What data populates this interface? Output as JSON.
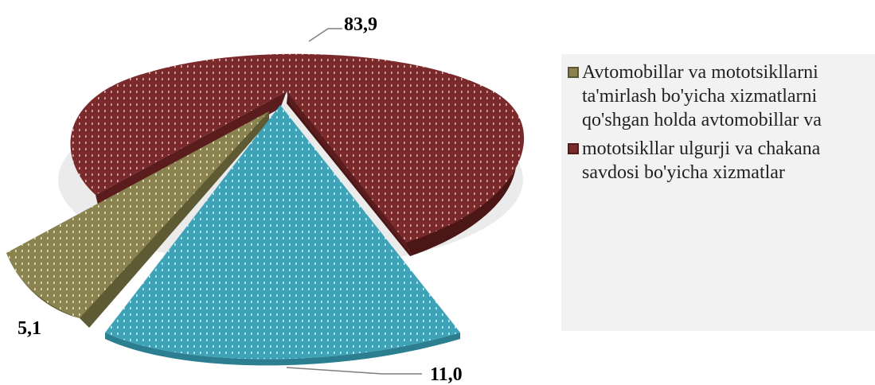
{
  "chart_data": {
    "type": "pie",
    "style": "3d-exploded",
    "slices": [
      {
        "label": "83,9",
        "value": 83.9,
        "color": "#7a2a2a"
      },
      {
        "label": "11,0",
        "value": 11.0,
        "color": "#3fa3b8"
      },
      {
        "label": "5,1",
        "value": 5.1,
        "color": "#8a8350"
      }
    ],
    "legend": {
      "placement": "right",
      "entries": [
        {
          "text": "Avtomobillar va mototsikllarni ta'mirlash bo'yicha xizmatlarni qo'shgan holda avtomobillar va",
          "color": "#8a8350"
        },
        {
          "text": "mototsikllar ulgurji va chakana savdosi bo'yicha xizmatlar",
          "color": "#7a2a2a"
        }
      ]
    }
  }
}
